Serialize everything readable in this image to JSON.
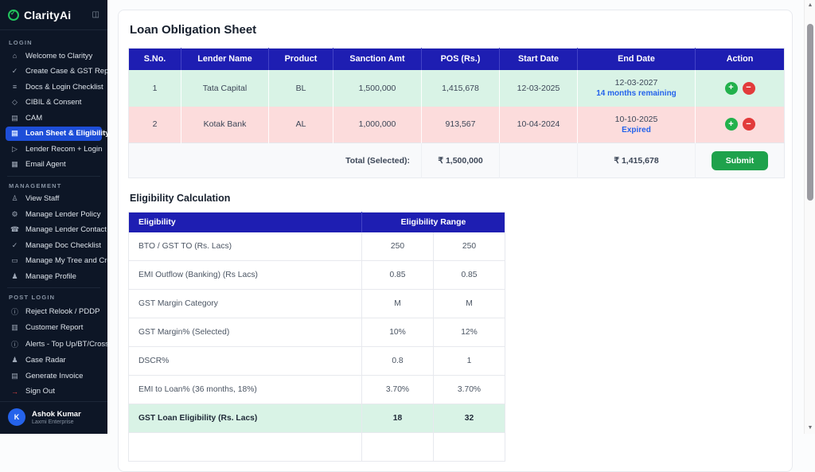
{
  "app": {
    "name": "ClarityAi"
  },
  "sidebar": {
    "sections": [
      {
        "label": "LOGIN",
        "items": [
          {
            "label": "Welcome to Clarityy",
            "icon": "home-icon"
          },
          {
            "label": "Create Case & GST Report",
            "icon": "check-circle-icon"
          },
          {
            "label": "Docs & Login Checklist",
            "icon": "checklist-icon"
          },
          {
            "label": "CIBIL & Consent",
            "icon": "shield-icon"
          },
          {
            "label": "CAM",
            "icon": "document-icon"
          },
          {
            "label": "Loan Sheet & Eligibility",
            "icon": "document-icon",
            "active": true
          },
          {
            "label": "Lender Recom + Login",
            "icon": "send-icon"
          },
          {
            "label": "Email Agent",
            "icon": "building-icon"
          }
        ]
      },
      {
        "label": "MANAGEMENT",
        "items": [
          {
            "label": "View Staff",
            "icon": "person-icon"
          },
          {
            "label": "Manage Lender Policy",
            "icon": "gear-icon"
          },
          {
            "label": "Manage Lender Contact",
            "icon": "phone-icon"
          },
          {
            "label": "Manage Doc Checklist",
            "icon": "check-circle-icon"
          },
          {
            "label": "Manage My Tree and Credits",
            "icon": "folder-icon"
          },
          {
            "label": "Manage Profile",
            "icon": "people-icon"
          }
        ]
      },
      {
        "label": "POST LOGIN",
        "items": [
          {
            "label": "Reject Relook / PDDP",
            "icon": "info-icon"
          },
          {
            "label": "Customer Report",
            "icon": "chart-icon"
          },
          {
            "label": "Alerts - Top Up/BT/Cross-sell",
            "icon": "info-icon"
          },
          {
            "label": "Case Radar",
            "icon": "people-icon"
          },
          {
            "label": "Generate Invoice",
            "icon": "document-icon"
          },
          {
            "label": "Sign Out",
            "icon": "logout-icon",
            "signout": true
          }
        ]
      }
    ],
    "user": {
      "name": "Ashok Kumar",
      "org": "Laxmi Enterprise",
      "avatar_letter": "K"
    }
  },
  "main": {
    "title": "Loan Obligation Sheet",
    "loan_table": {
      "headers": [
        "S.No.",
        "Lender Name",
        "Product",
        "Sanction Amt",
        "POS (Rs.)",
        "Start Date",
        "End Date",
        "Action"
      ],
      "rows": [
        {
          "sno": "1",
          "lender": "Tata Capital",
          "product": "BL",
          "sanction": "1,500,000",
          "pos": "1,415,678",
          "start": "12-03-2025",
          "end": "12-03-2027",
          "end_note": "14 months remaining",
          "state": "selected"
        },
        {
          "sno": "2",
          "lender": "Kotak Bank",
          "product": "AL",
          "sanction": "1,000,000",
          "pos": "913,567",
          "start": "10-04-2024",
          "end": "10-10-2025",
          "end_note": "Expired",
          "state": "expired"
        }
      ],
      "total": {
        "label": "Total (Selected):",
        "sanction_total": "₹ 1,500,000",
        "pos_total": "₹ 1,415,678",
        "submit_label": "Submit"
      }
    },
    "eligibility": {
      "title": "Eligibility Calculation",
      "headers": {
        "left": "Eligibility",
        "range": "Eligibility Range"
      },
      "rows": [
        {
          "label": "BTO / GST TO (Rs. Lacs)",
          "min": "250",
          "max": "250"
        },
        {
          "label": "EMI Outflow (Banking) (Rs Lacs)",
          "min": "0.85",
          "max": "0.85"
        },
        {
          "label": "GST Margin Category",
          "min": "M",
          "max": "M"
        },
        {
          "label": "GST Margin% (Selected)",
          "min": "10%",
          "max": "12%"
        },
        {
          "label": "DSCR%",
          "min": "0.8",
          "max": "1"
        },
        {
          "label": "EMI to Loan% (36 months, 18%)",
          "min": "3.70%",
          "max": "3.70%"
        },
        {
          "label": "GST Loan Eligibility (Rs. Lacs)",
          "min": "18",
          "max": "32",
          "highlight": true
        }
      ]
    }
  },
  "colors": {
    "sidebar_bg": "#0d1626",
    "active_item": "#1d4ed8",
    "brand_green": "#22c55e",
    "table_header": "#1e1eb2",
    "row_selected": "#d9f3e6",
    "row_expired": "#fcdcdc",
    "money_green": "#17a34a",
    "note_blue": "#2563eb",
    "submit_green": "#1fa24c",
    "plus_green": "#22b14c",
    "minus_red": "#e23b3b",
    "avatar_blue": "#2563eb",
    "signout_red": "#ef4444"
  }
}
